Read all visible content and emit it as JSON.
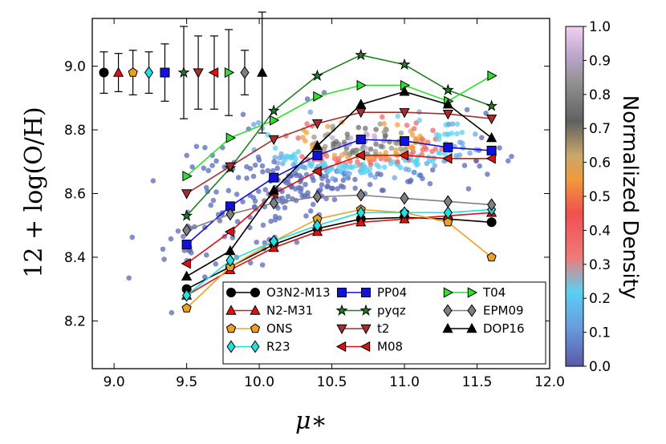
{
  "chart_data": {
    "type": "line",
    "xlabel": "μ∗",
    "ylabel": "12 + log(O/H)",
    "xlim": [
      8.85,
      12.0
    ],
    "ylim": [
      8.05,
      9.15
    ],
    "xticks": [
      "9.0",
      "9.5",
      "10.0",
      "10.5",
      "11.0",
      "11.5",
      "12.0"
    ],
    "yticks": [
      "8.2",
      "8.4",
      "8.6",
      "8.8",
      "9.0"
    ],
    "colorbar": {
      "label": "Normalized Density",
      "range": [
        0.0,
        1.0
      ],
      "ticks": [
        "0.0",
        "0.1",
        "0.2",
        "0.3",
        "0.4",
        "0.5",
        "0.6",
        "0.7",
        "0.8",
        "0.9",
        "1.0"
      ]
    },
    "series": [
      {
        "name": "O3N2-M13",
        "color": "#000000",
        "marker": "circle",
        "x": [
          9.5,
          9.8,
          10.1,
          10.4,
          10.7,
          11.0,
          11.3,
          11.6
        ],
        "y": [
          8.3,
          8.37,
          8.44,
          8.49,
          8.52,
          8.525,
          8.52,
          8.51
        ]
      },
      {
        "name": "N2-M31",
        "color": "#e01010",
        "marker": "triangle-up",
        "x": [
          9.5,
          9.8,
          10.1,
          10.4,
          10.7,
          11.0,
          11.3,
          11.6
        ],
        "y": [
          8.28,
          8.36,
          8.43,
          8.48,
          8.51,
          8.52,
          8.53,
          8.54
        ]
      },
      {
        "name": "ONS",
        "color": "#f0a020",
        "marker": "pentagon",
        "x": [
          9.5,
          9.8,
          10.1,
          10.4,
          10.7,
          11.0,
          11.3,
          11.6
        ],
        "y": [
          8.24,
          8.37,
          8.45,
          8.52,
          8.55,
          8.54,
          8.51,
          8.4
        ]
      },
      {
        "name": "R23",
        "color": "#20e0e0",
        "marker": "diamond",
        "x": [
          9.5,
          9.8,
          10.1,
          10.4,
          10.7,
          11.0,
          11.3,
          11.6
        ],
        "y": [
          8.28,
          8.39,
          8.45,
          8.5,
          8.54,
          8.54,
          8.54,
          8.55
        ]
      },
      {
        "name": "PP04",
        "color": "#1010e0",
        "marker": "square",
        "x": [
          9.5,
          9.8,
          10.1,
          10.4,
          10.7,
          11.0,
          11.3,
          11.6
        ],
        "y": [
          8.44,
          8.56,
          8.65,
          8.72,
          8.77,
          8.765,
          8.745,
          8.735
        ]
      },
      {
        "name": "pyqz",
        "color": "#208020",
        "marker": "star",
        "x": [
          9.5,
          9.8,
          10.1,
          10.4,
          10.7,
          11.0,
          11.3,
          11.6
        ],
        "y": [
          8.53,
          8.68,
          8.86,
          8.97,
          9.035,
          9.005,
          8.925,
          8.875
        ]
      },
      {
        "name": "t2",
        "color": "#a03030",
        "marker": "triangle-down",
        "x": [
          9.5,
          9.8,
          10.1,
          10.4,
          10.7,
          11.0,
          11.3,
          11.6
        ],
        "y": [
          8.6,
          8.685,
          8.77,
          8.82,
          8.855,
          8.855,
          8.85,
          8.835
        ]
      },
      {
        "name": "M08",
        "color": "#e01010",
        "marker": "triangle-left",
        "x": [
          9.5,
          9.8,
          10.1,
          10.4,
          10.7,
          11.0,
          11.3,
          11.6
        ],
        "y": [
          8.38,
          8.48,
          8.6,
          8.67,
          8.72,
          8.72,
          8.71,
          8.71
        ]
      },
      {
        "name": "T04",
        "color": "#30e030",
        "marker": "triangle-right",
        "x": [
          9.5,
          9.8,
          10.1,
          10.4,
          10.7,
          11.0,
          11.3,
          11.6
        ],
        "y": [
          8.655,
          8.775,
          8.83,
          8.905,
          8.94,
          8.94,
          8.89,
          8.97
        ]
      },
      {
        "name": "EPM09",
        "color": "#808080",
        "marker": "diamond",
        "x": [
          9.5,
          9.8,
          10.1,
          10.4,
          10.7,
          11.0,
          11.3,
          11.6
        ],
        "y": [
          8.485,
          8.535,
          8.57,
          8.59,
          8.595,
          8.585,
          8.575,
          8.565
        ]
      },
      {
        "name": "DOP16",
        "color": "#000000",
        "marker": "triangle-up",
        "x": [
          9.5,
          9.8,
          10.1,
          10.4,
          10.7,
          11.0,
          11.3,
          11.6
        ],
        "y": [
          8.34,
          8.42,
          8.61,
          8.75,
          8.88,
          8.92,
          8.88,
          8.775
        ]
      }
    ],
    "errorbars": [
      {
        "name": "O3N2-M13",
        "x": 8.93,
        "y": 8.98,
        "err": 0.065
      },
      {
        "name": "N2-M31",
        "x": 9.03,
        "y": 8.98,
        "err": 0.06
      },
      {
        "name": "ONS",
        "x": 9.13,
        "y": 8.98,
        "err": 0.07
      },
      {
        "name": "R23",
        "x": 9.24,
        "y": 8.98,
        "err": 0.065
      },
      {
        "name": "PP04",
        "x": 9.35,
        "y": 8.98,
        "err": 0.09
      },
      {
        "name": "pyqz",
        "x": 9.48,
        "y": 8.98,
        "err": 0.145
      },
      {
        "name": "t2",
        "x": 9.58,
        "y": 8.98,
        "err": 0.115
      },
      {
        "name": "M08",
        "x": 9.69,
        "y": 8.98,
        "err": 0.115
      },
      {
        "name": "T04",
        "x": 9.79,
        "y": 8.98,
        "err": 0.135
      },
      {
        "name": "EPM09",
        "x": 9.9,
        "y": 8.98,
        "err": 0.07
      },
      {
        "name": "DOP16",
        "x": 10.02,
        "y": 8.98,
        "err": 0.19
      }
    ],
    "legend": {
      "position": "lower-right",
      "columns": 3,
      "order": [
        "O3N2-M13",
        "N2-M31",
        "ONS",
        "R23",
        "PP04",
        "pyqz",
        "t2",
        "M08",
        "T04",
        "EPM09",
        "DOP16"
      ]
    },
    "scatter_note": "background density scatter of galaxy points coloured by normalized density"
  }
}
